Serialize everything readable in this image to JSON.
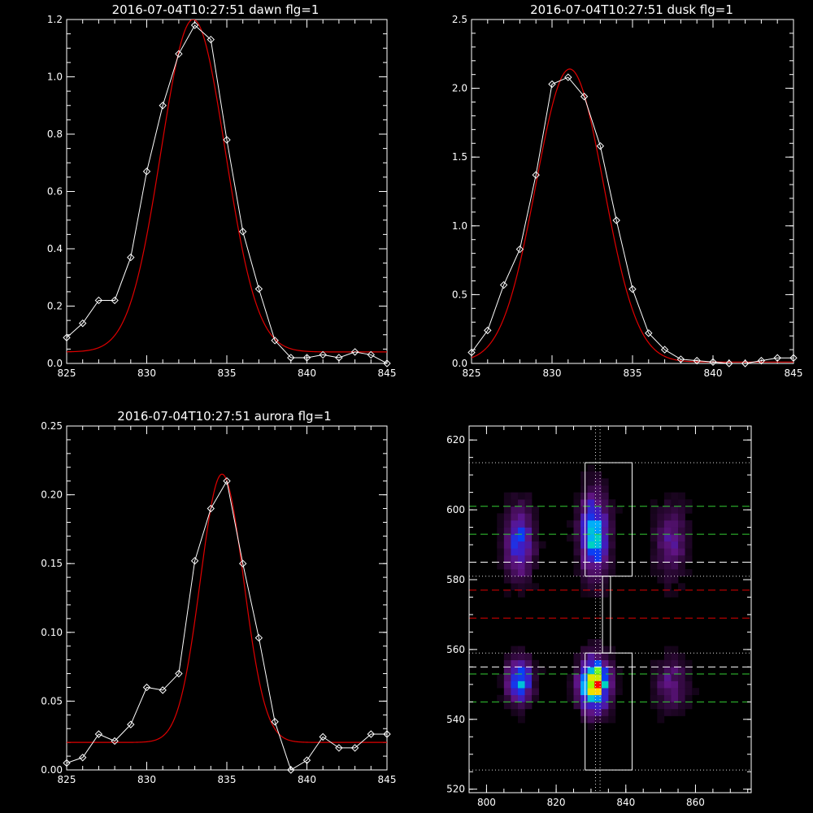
{
  "chart_data": [
    {
      "type": "line",
      "title": "2016-07-04T10:27:51 dawn flg=1",
      "xlabel": "",
      "ylabel": "",
      "xlim": [
        825,
        845
      ],
      "ylim": [
        0,
        1.2
      ],
      "xticks": [
        825,
        830,
        835,
        840,
        845
      ],
      "yticks": [
        0.0,
        0.2,
        0.4,
        0.6,
        0.8,
        1.0,
        1.2
      ],
      "ytick_labels": [
        "0.0",
        "0.2",
        "0.4",
        "0.6",
        "0.8",
        "1.0",
        "1.2"
      ],
      "series": [
        {
          "color": "#ffffff",
          "markers": "diamond",
          "x": [
            825,
            826,
            827,
            828,
            829,
            830,
            831,
            832,
            833,
            834,
            835,
            836,
            837,
            838,
            839,
            840,
            841,
            842,
            843,
            844,
            845
          ],
          "y": [
            0.09,
            0.14,
            0.22,
            0.22,
            0.37,
            0.67,
            0.9,
            1.08,
            1.18,
            1.13,
            0.78,
            0.46,
            0.26,
            0.08,
            0.02,
            0.02,
            0.03,
            0.02,
            0.04,
            0.03,
            0.0
          ]
        },
        {
          "color": "#e00000",
          "model": "gaussian",
          "params": {
            "amplitude": 1.16,
            "center": 832.9,
            "sigma": 2.0,
            "offset": 0.04
          }
        }
      ]
    },
    {
      "type": "line",
      "title": "2016-07-04T10:27:51 dusk flg=1",
      "xlabel": "",
      "ylabel": "",
      "xlim": [
        825,
        845
      ],
      "ylim": [
        0,
        2.5
      ],
      "xticks": [
        825,
        830,
        835,
        840,
        845
      ],
      "yticks": [
        0.0,
        0.5,
        1.0,
        1.5,
        2.0,
        2.5
      ],
      "ytick_labels": [
        "0.0",
        "0.5",
        "1.0",
        "1.5",
        "2.0",
        "2.5"
      ],
      "series": [
        {
          "color": "#ffffff",
          "markers": "diamond",
          "x": [
            825,
            826,
            827,
            828,
            829,
            830,
            831,
            832,
            833,
            834,
            835,
            836,
            837,
            838,
            839,
            840,
            841,
            842,
            843,
            844,
            845
          ],
          "y": [
            0.08,
            0.24,
            0.57,
            0.83,
            1.37,
            2.03,
            2.08,
            1.94,
            1.58,
            1.04,
            0.54,
            0.22,
            0.1,
            0.03,
            0.02,
            0.01,
            0.0,
            0.0,
            0.02,
            0.04,
            0.04
          ]
        },
        {
          "color": "#e00000",
          "model": "gaussian",
          "params": {
            "amplitude": 2.13,
            "center": 831.1,
            "sigma": 2.1,
            "offset": 0.01
          }
        }
      ]
    },
    {
      "type": "line",
      "title": "2016-07-04T10:27:51 aurora flg=1",
      "xlabel": "",
      "ylabel": "",
      "xlim": [
        825,
        845
      ],
      "ylim": [
        0,
        0.25
      ],
      "xticks": [
        825,
        830,
        835,
        840,
        845
      ],
      "yticks": [
        0.0,
        0.05,
        0.1,
        0.15,
        0.2,
        0.25
      ],
      "ytick_labels": [
        "0.00",
        "0.05",
        "0.10",
        "0.15",
        "0.20",
        "0.25"
      ],
      "series": [
        {
          "color": "#ffffff",
          "markers": "diamond",
          "x": [
            825,
            826,
            827,
            828,
            829,
            830,
            831,
            832,
            833,
            834,
            835,
            836,
            837,
            838,
            839,
            840,
            841,
            842,
            843,
            844,
            845
          ],
          "y": [
            0.005,
            0.009,
            0.026,
            0.021,
            0.033,
            0.06,
            0.058,
            0.07,
            0.152,
            0.19,
            0.21,
            0.15,
            0.096,
            0.035,
            0.0,
            0.007,
            0.024,
            0.016,
            0.016,
            0.026,
            0.026
          ]
        },
        {
          "color": "#e00000",
          "model": "gaussian",
          "params": {
            "amplitude": 0.195,
            "center": 834.7,
            "sigma": 1.35,
            "offset": 0.02
          }
        }
      ]
    },
    {
      "type": "heatmap",
      "title": "",
      "xlabel": "",
      "ylabel": "",
      "xlim": [
        795,
        876
      ],
      "ylim": [
        519,
        624
      ],
      "xticks": [
        800,
        820,
        840,
        860
      ],
      "yticks": [
        520,
        540,
        560,
        580,
        600,
        620
      ],
      "colormap": "rainbow-on-black",
      "blobs": [
        {
          "x": 809.5,
          "y": 591,
          "sx": 2.6,
          "sy": 6.5,
          "intensity": 0.42
        },
        {
          "x": 809.5,
          "y": 551,
          "sx": 2.4,
          "sy": 4.2,
          "intensity": 0.55
        },
        {
          "x": 831,
          "y": 593,
          "sx": 2.6,
          "sy": 7.5,
          "intensity": 0.62
        },
        {
          "x": 831,
          "y": 550,
          "sx": 2.7,
          "sy": 4.8,
          "intensity": 1.0
        },
        {
          "x": 853,
          "y": 591,
          "sx": 3.0,
          "sy": 7.0,
          "intensity": 0.22
        },
        {
          "x": 853,
          "y": 550,
          "sx": 3.0,
          "sy": 5.0,
          "intensity": 0.22
        }
      ],
      "boxes": [
        {
          "x0": 828.3,
          "x1": 841.8,
          "y0": 581,
          "y1": 613.5,
          "color": "#ffffff"
        },
        {
          "x0": 828.3,
          "x1": 841.8,
          "y0": 525.5,
          "y1": 559,
          "color": "#ffffff"
        },
        {
          "x0": 833.3,
          "x1": 835.6,
          "y0": 559,
          "y1": 581,
          "color": "#ffffff"
        }
      ],
      "hlines": [
        {
          "y": 613.5,
          "color": "#dddddd",
          "style": "dotted"
        },
        {
          "y": 601,
          "color": "#33cc33",
          "style": "dashed"
        },
        {
          "y": 593,
          "color": "#33cc33",
          "style": "dashed"
        },
        {
          "y": 585,
          "color": "#ffffff",
          "style": "dashed"
        },
        {
          "y": 581,
          "color": "#dddddd",
          "style": "dotted"
        },
        {
          "y": 577,
          "color": "#dd0000",
          "style": "dashed"
        },
        {
          "y": 569,
          "color": "#dd0000",
          "style": "dashed"
        },
        {
          "y": 559,
          "color": "#dddddd",
          "style": "dotted"
        },
        {
          "y": 555,
          "color": "#ffffff",
          "style": "dashed"
        },
        {
          "y": 553,
          "color": "#33cc33",
          "style": "dashed"
        },
        {
          "y": 545,
          "color": "#33cc33",
          "style": "dashed"
        },
        {
          "y": 525.5,
          "color": "#dddddd",
          "style": "dotted"
        }
      ],
      "vlines": [
        {
          "x": 831.3,
          "color": "#dddddd",
          "style": "dotted"
        },
        {
          "x": 832.6,
          "color": "#dddddd",
          "style": "dotted"
        }
      ]
    }
  ]
}
